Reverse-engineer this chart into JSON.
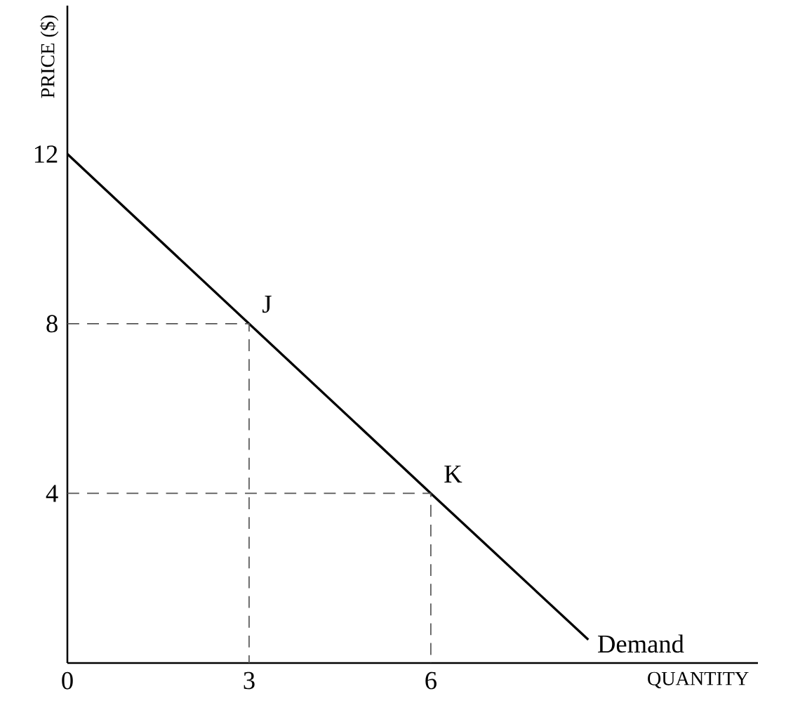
{
  "chart_data": {
    "type": "line",
    "xlabel": "QUANTITY",
    "ylabel": "PRICE ($)",
    "xlim": [
      0,
      11.4
    ],
    "ylim": [
      0,
      15.5
    ],
    "xticks": [
      0,
      3,
      6
    ],
    "yticks": [
      4,
      8,
      12
    ],
    "series": [
      {
        "name": "Demand",
        "color": "#000000",
        "x": [
          0,
          3,
          6,
          8.6
        ],
        "values": [
          12,
          8,
          4,
          0.55
        ]
      },
      {
        "color": "#555555",
        "line_style": "dashed",
        "x": [
          0,
          3,
          3
        ],
        "values": [
          8,
          8,
          0
        ]
      },
      {
        "color": "#555555",
        "line_style": "dashed",
        "x": [
          0,
          6,
          6
        ],
        "values": [
          4,
          4,
          0
        ]
      }
    ],
    "annotations": [
      {
        "text": "J",
        "x": 3,
        "y": 8
      },
      {
        "text": "K",
        "x": 6,
        "y": 4
      }
    ]
  }
}
